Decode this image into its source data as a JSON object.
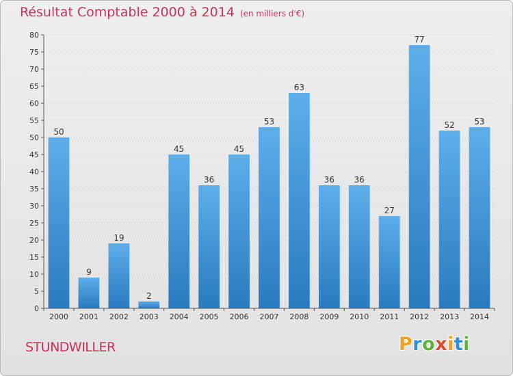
{
  "chart_data": {
    "type": "bar",
    "title": "Résultat Comptable 2000 à 2014",
    "subtitle": "(en milliers d'€)",
    "categories": [
      "2000",
      "2001",
      "2002",
      "2003",
      "2004",
      "2005",
      "2006",
      "2007",
      "2008",
      "2009",
      "2010",
      "2011",
      "2012",
      "2013",
      "2014"
    ],
    "values": [
      50,
      9,
      19,
      2,
      45,
      36,
      45,
      53,
      63,
      36,
      36,
      27,
      77,
      52,
      53
    ],
    "ylim": [
      0,
      80
    ],
    "yticks": [
      0,
      5,
      10,
      15,
      20,
      25,
      30,
      35,
      40,
      45,
      50,
      55,
      60,
      65,
      70,
      75,
      80
    ],
    "grid": true,
    "bar_color_top": "#5daeea",
    "bar_color_bottom": "#2a7ac0",
    "title_color": "#c8325a"
  },
  "footer": {
    "town": "STUNDWILLER",
    "logo_letters": [
      "P",
      "r",
      "o",
      "x",
      "i",
      "t",
      "i"
    ],
    "logo_colors": [
      "#f0a020",
      "#2f8fd6",
      "#59b73a",
      "#e14a2b",
      "#f0a020",
      "#2f8fd6",
      "#59b73a"
    ]
  }
}
